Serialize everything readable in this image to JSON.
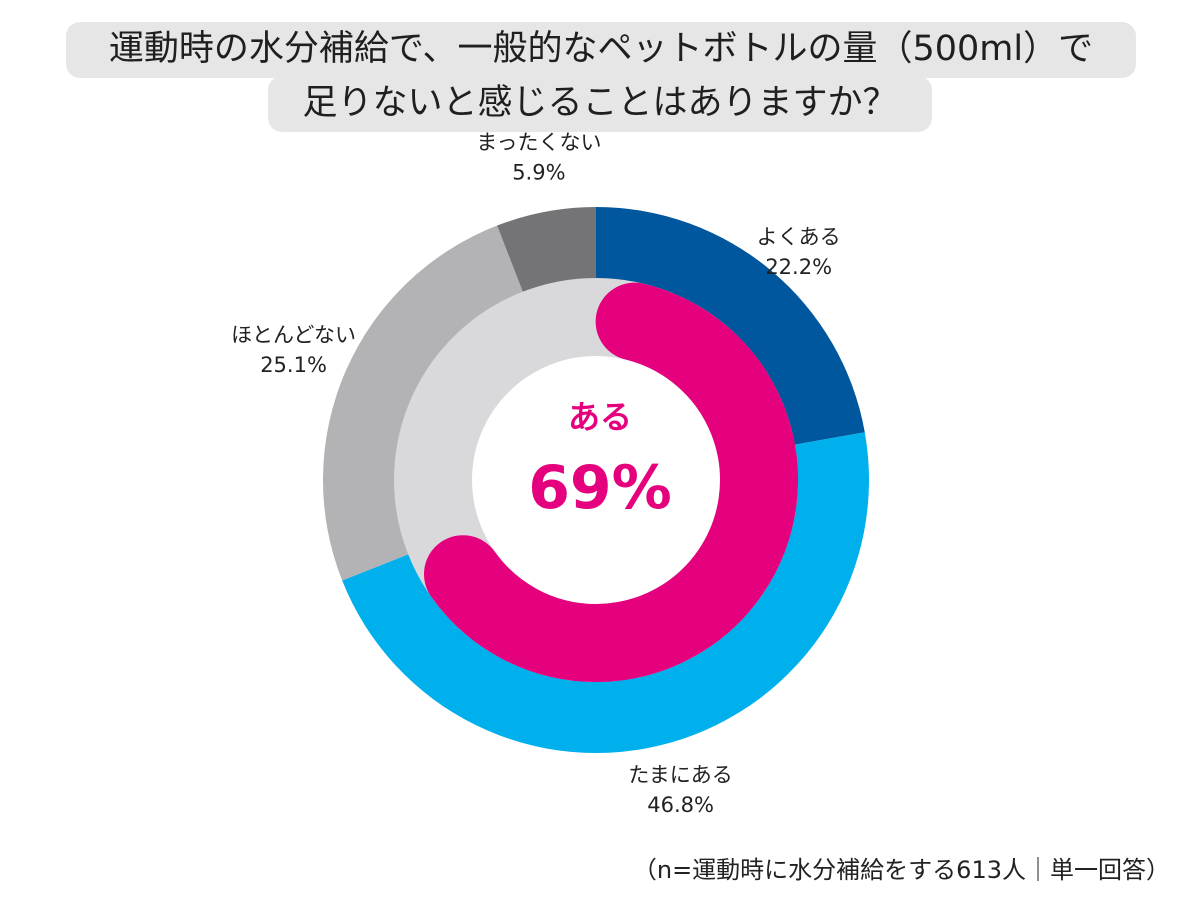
{
  "header": {
    "title_line1": "運動時の水分補給で、一般的なペットボトルの量（500ml）で",
    "title_line2": "足りないと感じることはありますか？"
  },
  "chart_data": {
    "type": "pie",
    "title": "運動時の水分補給で、一般的なペットボトルの量（500ml）で足りないと感じることはありますか？",
    "outer_ring": {
      "categories": [
        "よくある",
        "たまにある",
        "ほとんどない",
        "まったくない"
      ],
      "values": [
        22.2,
        46.8,
        25.1,
        5.9
      ],
      "value_labels": [
        "22.2%",
        "46.8%",
        "25.1%",
        "5.9%"
      ],
      "colors": [
        "#00579e",
        "#00b0ec",
        "#b3b2b5",
        "#747376"
      ]
    },
    "inner_ring": {
      "label": "ある",
      "value": 69,
      "value_label": "69%",
      "color": "#e5007d",
      "track_color": "#d9d8da"
    }
  },
  "footnote": {
    "text": "（n=運動時に水分補給をする613人｜単一回答）"
  }
}
